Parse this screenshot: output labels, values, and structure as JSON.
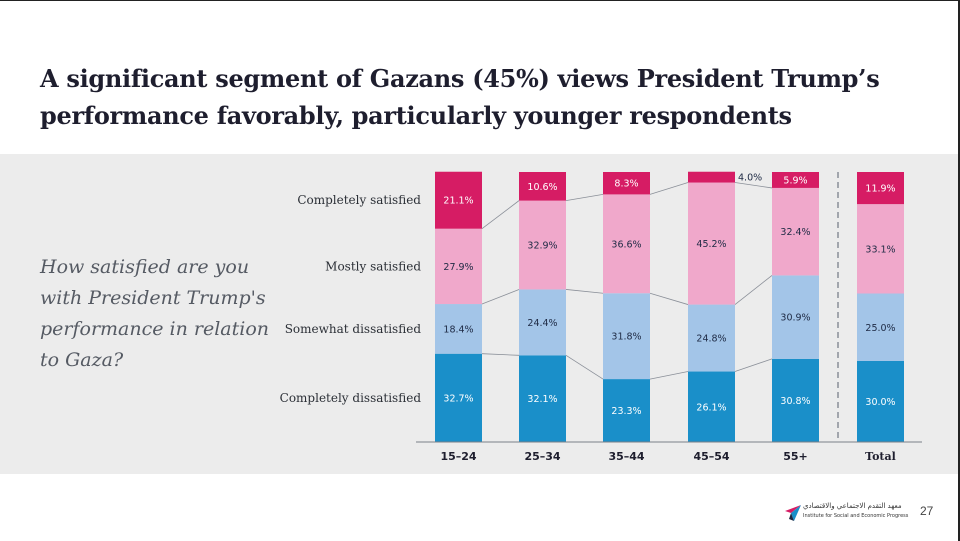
{
  "slide": {
    "title": "A significant segment of Gazans (45%) views President Trump’s performance favorably, particularly younger respondents",
    "question": "How satisfied are you with President Trump's performance in relation to Gaza?",
    "page_number": "27",
    "logo_arabic": "معهد التقدم الاجتماعي والاقتصادي",
    "logo_english": "Institute for Social and Economic Progress"
  },
  "colors": {
    "completely_dissatisfied": "#1a8fc9",
    "somewhat_dissatisfied": "#a3c5e8",
    "mostly_satisfied": "#f0a8cb",
    "completely_satisfied": "#d61c64"
  },
  "chart_data": {
    "type": "bar",
    "stacked": true,
    "percent": true,
    "categories": [
      "15–24",
      "25–34",
      "35–44",
      "45–54",
      "55+",
      "Total"
    ],
    "series": [
      {
        "name": "Completely dissatisfied",
        "color_key": "completely_dissatisfied",
        "values": [
          32.7,
          32.1,
          23.3,
          26.1,
          30.8,
          30.0
        ],
        "labels": [
          "32.7%",
          "32.1%",
          "23.3%",
          "26.1%",
          "30.8%",
          "30.0%"
        ]
      },
      {
        "name": "Somewhat dissatisfied",
        "color_key": "somewhat_dissatisfied",
        "values": [
          18.4,
          24.4,
          31.8,
          24.8,
          30.9,
          25.0
        ],
        "labels": [
          "18.4%",
          "24.4%",
          "31.8%",
          "24.8%",
          "30.9%",
          "25.0%"
        ]
      },
      {
        "name": "Mostly satisfied",
        "color_key": "mostly_satisfied",
        "values": [
          27.9,
          32.9,
          36.6,
          45.2,
          32.4,
          33.1
        ],
        "labels": [
          "27.9%",
          "32.9%",
          "36.6%",
          "45.2%",
          "32.4%",
          "33.1%"
        ]
      },
      {
        "name": "Completely satisfied",
        "color_key": "completely_satisfied",
        "values": [
          21.1,
          10.6,
          8.3,
          4.0,
          5.9,
          11.9
        ],
        "labels": [
          "21.1%",
          "10.6%",
          "8.3%",
          "4.0%",
          "5.9%",
          "11.9%"
        ]
      }
    ],
    "ylim": [
      0,
      100
    ],
    "legend_position": "left-inline",
    "connector_lines": true,
    "separator_before": "Total",
    "xlabel": "",
    "ylabel": ""
  }
}
